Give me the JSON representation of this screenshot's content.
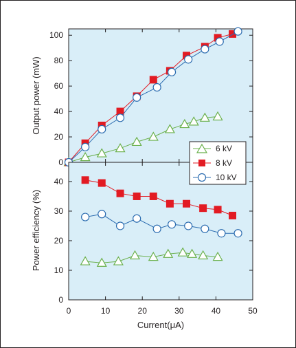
{
  "chart_data": [
    {
      "type": "line",
      "title": "",
      "xlabel": "",
      "ylabel": "Output power (mW)",
      "xlim": [
        0,
        50
      ],
      "ylim": [
        0,
        105
      ],
      "x_ticks": [
        0,
        10,
        20,
        30,
        40,
        50
      ],
      "y_ticks": [
        "0",
        "20",
        "40",
        "60",
        "80",
        "100"
      ],
      "grid": false,
      "series": [
        {
          "name": "6 kV",
          "marker": "triangle-open",
          "color": "#6ab04c",
          "x": [
            0,
            4.5,
            9,
            14,
            18.5,
            23,
            27.5,
            31.5,
            34,
            37,
            40.5
          ],
          "y": [
            0,
            4,
            7,
            11,
            16,
            20,
            26,
            30,
            32,
            35,
            36
          ]
        },
        {
          "name": "8 kV",
          "marker": "square-filled",
          "color": "#e21b23",
          "x": [
            0,
            4.5,
            9,
            14,
            18.5,
            23,
            27.5,
            32,
            37,
            40.5,
            44.5
          ],
          "y": [
            0,
            15,
            29,
            40,
            52,
            65,
            72,
            84,
            91,
            98,
            101
          ]
        },
        {
          "name": "10 kV",
          "marker": "circle-open",
          "color": "#2b6cb0",
          "x": [
            0,
            4.5,
            9,
            14,
            18.5,
            24,
            28,
            32.5,
            37,
            41,
            46
          ],
          "y": [
            0,
            12,
            26,
            35,
            51,
            59,
            71,
            81,
            89,
            95,
            103
          ]
        }
      ]
    },
    {
      "type": "line",
      "title": "",
      "xlabel": "Current(μA)",
      "ylabel": "Power efficiency (%)",
      "xlim": [
        0,
        50
      ],
      "ylim": [
        0,
        46.5
      ],
      "x_ticks": [
        "0",
        "10",
        "20",
        "30",
        "40",
        "50"
      ],
      "y_ticks": [
        "0",
        "10",
        "20",
        "30",
        "40"
      ],
      "grid": false,
      "series": [
        {
          "name": "6 kV",
          "marker": "triangle-open",
          "color": "#6ab04c",
          "x": [
            4.5,
            9,
            13.5,
            18,
            23,
            27,
            31,
            33.5,
            36.5,
            40.5
          ],
          "y": [
            13,
            12.5,
            13,
            15,
            14.5,
            15.5,
            16,
            15.5,
            15,
            14.5
          ]
        },
        {
          "name": "8 kV",
          "marker": "square-filled",
          "color": "#e21b23",
          "x": [
            4.5,
            9,
            14,
            18.5,
            23,
            27.5,
            32,
            36.5,
            40.5,
            44.5
          ],
          "y": [
            40.5,
            39.5,
            36,
            35,
            35,
            32.5,
            32.5,
            31,
            30.5,
            28.5
          ]
        },
        {
          "name": "10 kV",
          "marker": "circle-open",
          "color": "#2b6cb0",
          "x": [
            4.5,
            9,
            14,
            18.5,
            24,
            28,
            32.5,
            37,
            41.5,
            46
          ],
          "y": [
            28,
            29,
            25,
            27.5,
            24,
            25.5,
            25,
            24,
            22.5,
            22.5
          ]
        }
      ]
    }
  ],
  "legend": {
    "placement": "center-right",
    "items": [
      "6 kV",
      "8 kV",
      "10 kV"
    ]
  },
  "colors": {
    "plot_background": "#d9eef8",
    "frame": "#231f20"
  }
}
